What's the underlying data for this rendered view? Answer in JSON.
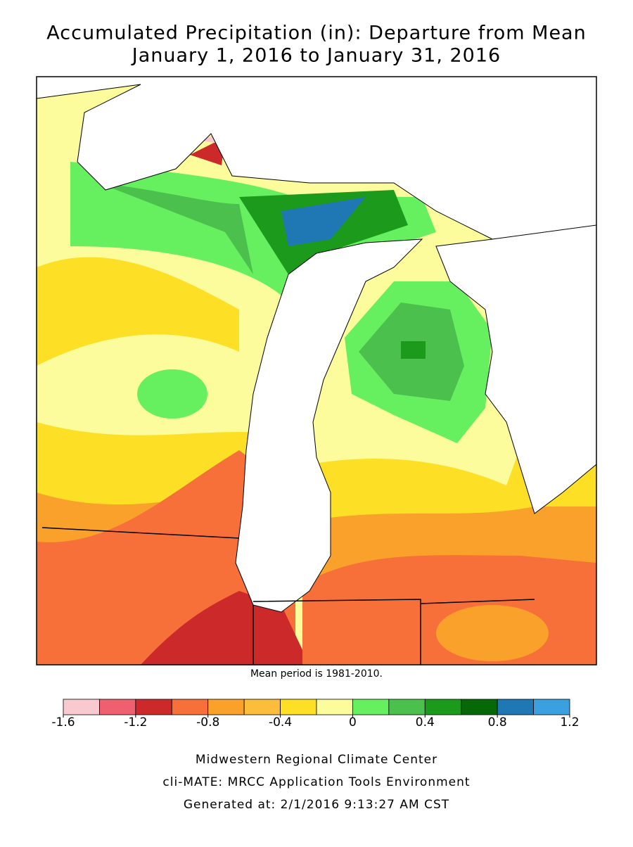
{
  "header": {
    "title": "Accumulated Precipitation (in): Departure from Mean",
    "subtitle": "January 1, 2016 to January 31, 2016"
  },
  "map": {
    "note": "Mean period is 1981-2010."
  },
  "legend": {
    "bins": [
      -1.6,
      -1.4,
      -1.2,
      -1.0,
      -0.8,
      -0.6,
      -0.4,
      -0.2,
      0,
      0.2,
      0.4,
      0.6,
      0.8,
      1.0,
      1.2
    ],
    "colors": [
      "#f9c9d0",
      "#ee6070",
      "#cc2a2a",
      "#f7703a",
      "#f9a12a",
      "#fbbd3b",
      "#fde025",
      "#fdfc9c",
      "#66f060",
      "#4cc04c",
      "#1b9a1b",
      "#066806",
      "#1f78b4",
      "#3aa0e0"
    ],
    "ticks": [
      -1.6,
      -1.2,
      -0.8,
      -0.4,
      0,
      0.4,
      0.8,
      1.2
    ]
  },
  "footer": {
    "lines": [
      "Midwestern Regional Climate Center",
      "cli-MATE: MRCC Application Tools Environment",
      "Generated at: 2/1/2016 9:13:27 AM CST"
    ]
  }
}
